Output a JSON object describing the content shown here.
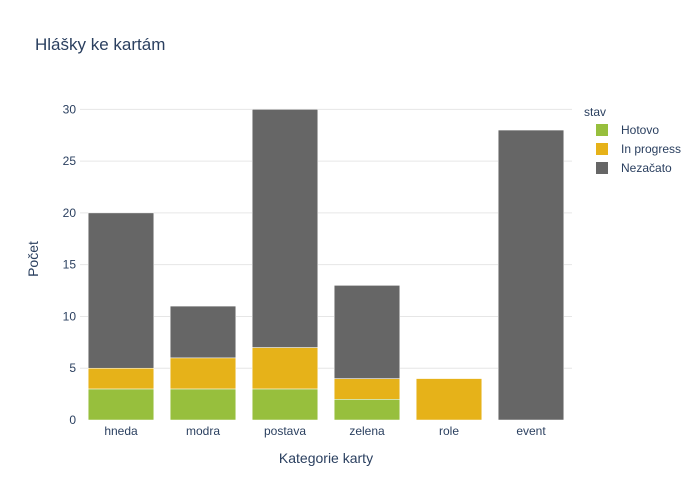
{
  "chart_data": {
    "type": "bar",
    "stacked": true,
    "title": "Hlášky ke kartám",
    "xlabel": "Kategorie karty",
    "ylabel": "Počet",
    "ylim": [
      0,
      31
    ],
    "yticks": [
      0,
      5,
      10,
      15,
      20,
      25,
      30
    ],
    "grid": true,
    "legend_title": "stav",
    "legend_position": "top-right",
    "categories": [
      "hneda",
      "modra",
      "postava",
      "zelena",
      "role",
      "event"
    ],
    "series": [
      {
        "name": "Hotovo",
        "color": "#97bf3d",
        "values": [
          3,
          3,
          3,
          2,
          0,
          0
        ]
      },
      {
        "name": "In progress",
        "color": "#e6b219",
        "values": [
          2,
          3,
          4,
          2,
          4,
          0
        ]
      },
      {
        "name": "Nezačato",
        "color": "#666666",
        "values": [
          15,
          5,
          23,
          9,
          0,
          28
        ]
      }
    ]
  }
}
